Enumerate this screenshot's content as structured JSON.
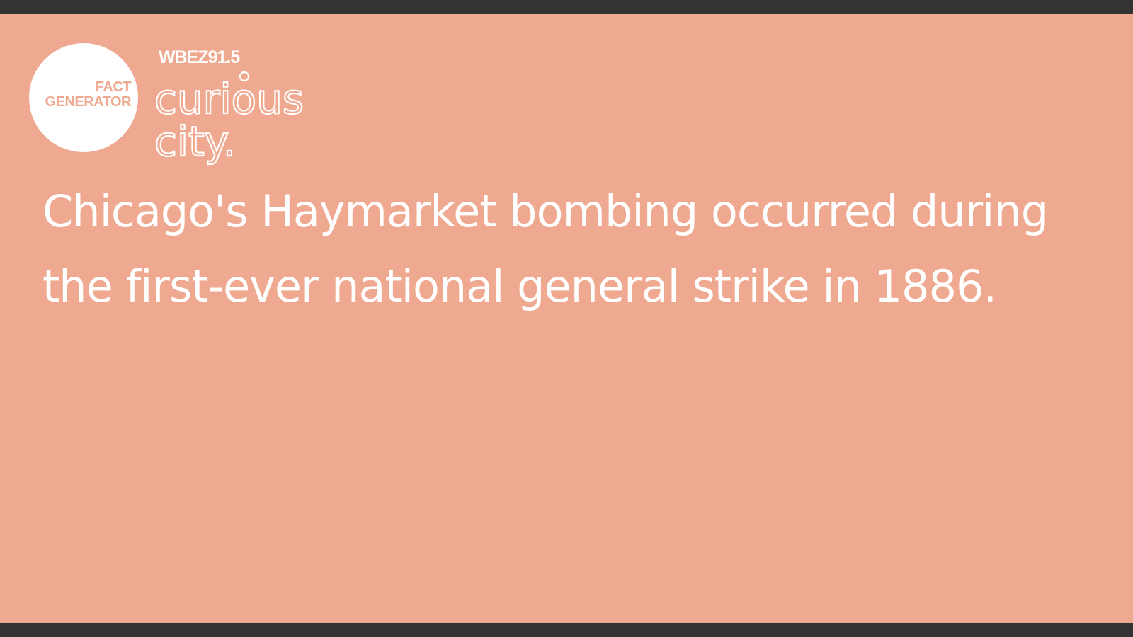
{
  "badge": {
    "line1": "FACT",
    "line2": "GENERATOR"
  },
  "logo": {
    "station": "WBEZ91.5",
    "word1": "curious",
    "word2": "city."
  },
  "fact": {
    "text": "Chicago's Haymarket bombing occurred during the first-ever national general strike in 1886."
  },
  "colors": {
    "background": "#efa990",
    "frame": "#333333",
    "text": "#ffffff"
  }
}
